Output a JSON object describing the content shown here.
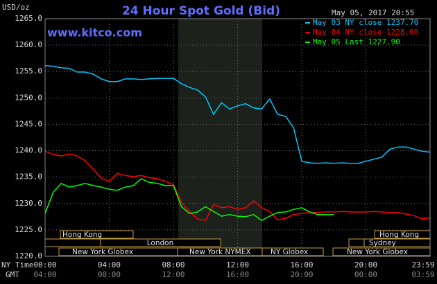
{
  "chart_data": {
    "type": "line",
    "title": "24 Hour Spot Gold (Bid)",
    "y_label": "USD/oz",
    "website": "www.kitco.com",
    "timestamp": "May 05, 2017 20:55",
    "x_axis_labels": [
      "NY Time",
      "GMT"
    ],
    "xlim": [
      0,
      24
    ],
    "ylim": [
      1220,
      1265
    ],
    "grid": true,
    "legend_position": "top-right",
    "yticks": [
      {
        "value": 1220,
        "label": "1220.0"
      },
      {
        "value": 1225,
        "label": "1225.0"
      },
      {
        "value": 1230,
        "label": "1230.0"
      },
      {
        "value": 1235,
        "label": "1235.0"
      },
      {
        "value": 1240,
        "label": "1240.0"
      },
      {
        "value": 1245,
        "label": "1245.0"
      },
      {
        "value": 1250,
        "label": "1250.0"
      },
      {
        "value": 1255,
        "label": "1255.0"
      },
      {
        "value": 1260,
        "label": "1260.0"
      },
      {
        "value": 1265,
        "label": "1265.0"
      }
    ],
    "xticks": [
      {
        "value": 0,
        "label": "00:00"
      },
      {
        "value": 4,
        "label": "04:00"
      },
      {
        "value": 8,
        "label": "08:00"
      },
      {
        "value": 12,
        "label": "12:00"
      },
      {
        "value": 16,
        "label": "16:00"
      },
      {
        "value": 20,
        "label": "20:00"
      },
      {
        "value": 23.98,
        "label": "23:59"
      }
    ],
    "gmt_labels": [
      "04:00",
      "08:00",
      "12:00",
      "16:00",
      "20:00",
      "00:00",
      "03:59"
    ],
    "sessions": [
      "Hong Kong",
      "London",
      "New York Globex",
      "New York NYMEX",
      "NY Globex",
      "Hong Kong",
      "Sydney",
      "New York Globex"
    ],
    "x": [
      0,
      0.5,
      1,
      1.5,
      2,
      2.5,
      3,
      3.5,
      4,
      4.5,
      5,
      5.5,
      6,
      6.5,
      7,
      7.5,
      8,
      8.5,
      9,
      9.5,
      10,
      10.5,
      11,
      11.5,
      12,
      12.5,
      13,
      13.5,
      14,
      14.5,
      15,
      15.5,
      16,
      16.5,
      17,
      17.5,
      18,
      18.5,
      19,
      19.5,
      20,
      20.5,
      21,
      21.5,
      22,
      22.5,
      23,
      23.5,
      24
    ],
    "series": [
      {
        "name": "May 03 NY close 1237.70",
        "color": "#00c8ff",
        "values": [
          1256.1,
          1256,
          1255.7,
          1255.6,
          1254.9,
          1254.9,
          1254.5,
          1253.6,
          1253.1,
          1253.1,
          1253.6,
          1253.6,
          1253.5,
          1253.6,
          1253.7,
          1253.7,
          1253.7,
          1252.7,
          1252,
          1251.5,
          1250.2,
          1246.9,
          1249.1,
          1247.9,
          1248.5,
          1248.9,
          1248.1,
          1247.9,
          1249.8,
          1246.9,
          1246.5,
          1244.3,
          1238,
          1237.7,
          1237.6,
          1237.7,
          1237.6,
          1237.7,
          1237.6,
          1237.6,
          1238,
          1238.4,
          1238.8,
          1240.3,
          1240.7,
          1240.7,
          1240.3,
          1239.9,
          1239.7
        ]
      },
      {
        "name": "May 04 NY close 1228.00",
        "color": "#ff0000",
        "values": [
          1239.9,
          1239.3,
          1239,
          1239.4,
          1239,
          1238.1,
          1236.5,
          1234.8,
          1234.2,
          1235.7,
          1235.3,
          1235.1,
          1235.3,
          1234.9,
          1234.7,
          1234.2,
          1233.6,
          1230.2,
          1228.5,
          1227.1,
          1226.8,
          1229.8,
          1229.2,
          1229.4,
          1228.9,
          1229.2,
          1230.5,
          1229.2,
          1228.5,
          1226.9,
          1227.2,
          1227.9,
          1228.1,
          1228.3,
          1228.3,
          1228.4,
          1228.4,
          1228.5,
          1228.4,
          1228.4,
          1228.4,
          1228.5,
          1228.4,
          1228.3,
          1228.3,
          1228,
          1227.7,
          1227.1,
          1227.3
        ]
      },
      {
        "name": "May 05 Last 1227.90",
        "color": "#00ff00",
        "values": [
          1228.1,
          1232.1,
          1233.8,
          1233.1,
          1233.4,
          1233.8,
          1233.4,
          1233.1,
          1232.7,
          1232.5,
          1233.1,
          1233.4,
          1234.7,
          1234,
          1233.8,
          1233.4,
          1233.4,
          1229.4,
          1228.1,
          1228.4,
          1229.4,
          1228.5,
          1227.6,
          1227.9,
          1227.6,
          1227.5,
          1227.9,
          1226.8,
          1227.6,
          1228.3,
          1228.4,
          1228.9,
          1229.2,
          1228.4,
          1227.9,
          1227.9,
          1227.9,
          null,
          null,
          null,
          null,
          null,
          null,
          null,
          null,
          null,
          null,
          null,
          null
        ]
      }
    ]
  }
}
